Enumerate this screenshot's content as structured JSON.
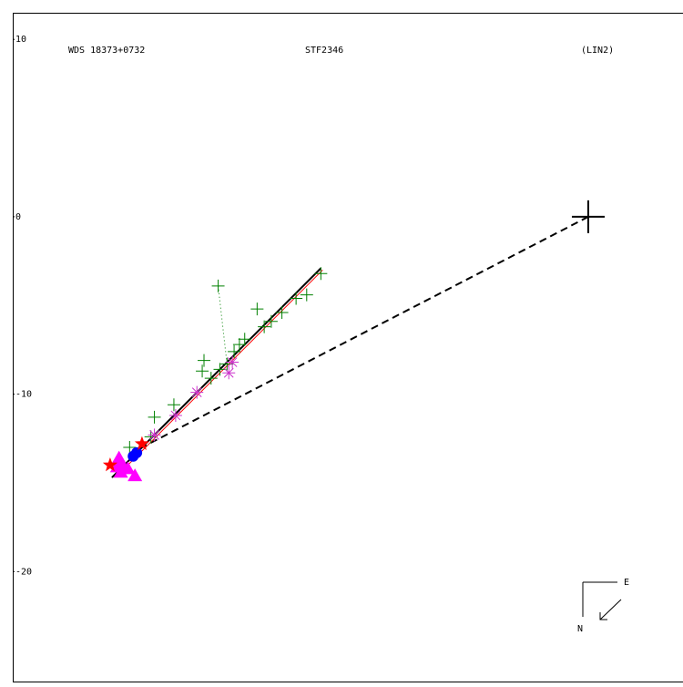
{
  "chart_data": {
    "type": "scatter",
    "title": "WDS 18373+0732",
    "subtitle": "STF2346",
    "annotation": "(LIN2)",
    "compass": {
      "east": "E",
      "north": "N"
    },
    "xlim": [
      -32.5,
      5.35
    ],
    "ylim": [
      -26.2,
      11.5
    ],
    "yticks": [
      10,
      0,
      -10,
      -20
    ],
    "series": [
      {
        "marker": "line",
        "line": "dashed",
        "color": "#000000",
        "x": [
          0,
          -25.2
        ],
        "y": [
          0,
          -13.0
        ]
      },
      {
        "marker": "line",
        "line": "solid",
        "color": "#000000",
        "x": [
          -26.9,
          -15.1
        ],
        "y": [
          -14.7,
          -2.9
        ]
      },
      {
        "marker": "line",
        "line": "thin",
        "color": "#ff0000",
        "x": [
          -26.3,
          -15.0
        ],
        "y": [
          -14.3,
          -3.0
        ]
      },
      {
        "marker": "line",
        "line": "dotted",
        "color": "#008000",
        "x": [
          -20.9,
          -20.4
        ],
        "y": [
          -3.9,
          -8.3
        ]
      },
      {
        "marker": "plus",
        "color": "#008000",
        "x": [
          -20.9,
          -15.1,
          -15.9,
          -16.5,
          -18.7,
          -17.3,
          -17.9,
          -18.3,
          -19.4,
          -19.7,
          -20.0,
          -20.4,
          -21.7,
          -21.8,
          -20.8,
          -21.3,
          -23.4,
          -24.5,
          -24.7,
          -25.9
        ],
        "y": [
          -3.9,
          -3.2,
          -4.4,
          -4.6,
          -5.2,
          -5.4,
          -5.9,
          -6.2,
          -6.9,
          -7.2,
          -7.6,
          -8.3,
          -8.1,
          -8.7,
          -8.6,
          -9.1,
          -10.6,
          -11.3,
          -12.4,
          -13.0
        ]
      },
      {
        "marker": "asterisk",
        "color": "#cc33cc",
        "x": [
          -20.3,
          -20.1,
          -22.1,
          -23.3,
          -24.5
        ],
        "y": [
          -8.8,
          -8.2,
          -9.9,
          -11.2,
          -12.3
        ]
      },
      {
        "marker": "triangle",
        "color": "#ff00ff",
        "x": [
          -26.5,
          -26.3,
          -26.0,
          -26.6,
          -25.6,
          -26.4
        ],
        "y": [
          -13.6,
          -14.0,
          -14.2,
          -14.1,
          -14.6,
          -14.4
        ]
      },
      {
        "marker": "circle",
        "color": "#0000ff",
        "x": [
          -25.5,
          -25.7
        ],
        "y": [
          -13.3,
          -13.5
        ]
      },
      {
        "marker": "star",
        "color": "#ff0000",
        "x": [
          -27.0,
          -25.2
        ],
        "y": [
          -14.0,
          -12.8
        ]
      },
      {
        "marker": "cross",
        "color": "#000000",
        "x": [
          0
        ],
        "y": [
          0
        ]
      }
    ]
  }
}
